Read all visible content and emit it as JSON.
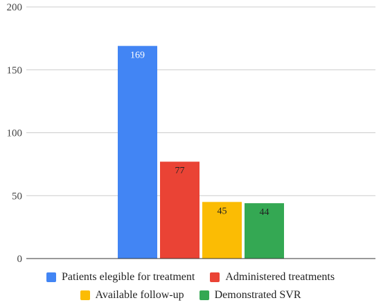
{
  "chart_data": {
    "type": "bar",
    "title": "",
    "xlabel": "",
    "ylabel": "",
    "ylim": [
      0,
      200
    ],
    "yticks": [
      0,
      50,
      100,
      150,
      200
    ],
    "grid": true,
    "legend_position": "bottom",
    "series": [
      {
        "name": "Patients elegible for treatment",
        "values": [
          169
        ],
        "color": "#4285F4",
        "label_color": "#ffffff"
      },
      {
        "name": "Administered treatments",
        "values": [
          77
        ],
        "color": "#EA4335",
        "label_color": "#222222"
      },
      {
        "name": "Available follow-up",
        "values": [
          45
        ],
        "color": "#FBBC04",
        "label_color": "#222222"
      },
      {
        "name": "Demonstrated SVR",
        "values": [
          44
        ],
        "color": "#34A853",
        "label_color": "#222222"
      }
    ],
    "data_labels": [
      "169",
      "77",
      "45",
      "44"
    ]
  },
  "legend": {
    "rows": [
      [
        0,
        1
      ],
      [
        2,
        3
      ]
    ]
  }
}
